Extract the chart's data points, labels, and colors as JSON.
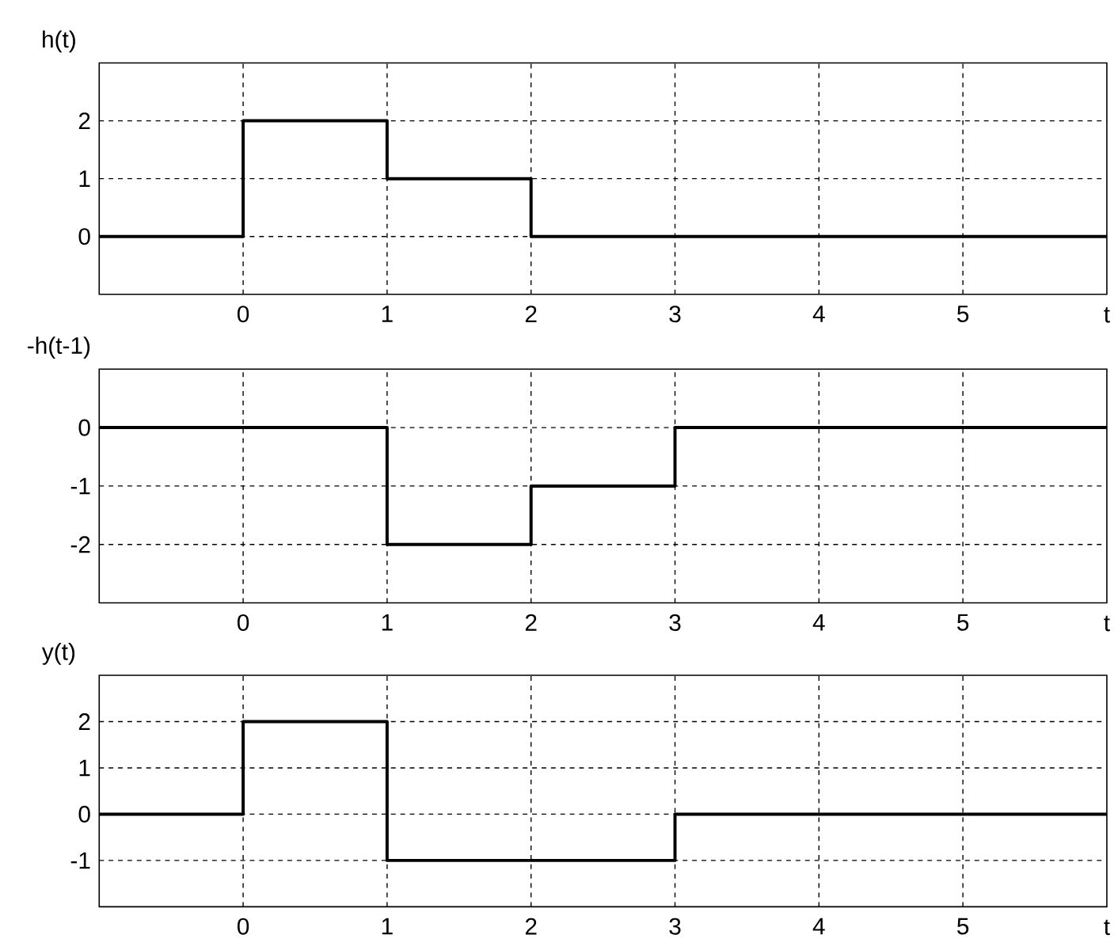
{
  "chart_data": [
    {
      "type": "step",
      "ylabel": "h(t)",
      "x": [
        -1,
        0,
        1,
        2,
        6
      ],
      "values": [
        0,
        2,
        1,
        0,
        0
      ],
      "color": "#000000",
      "xlim": [
        -1,
        6
      ],
      "ylim": [
        -1,
        3
      ],
      "xlabel": "t",
      "xticks": [
        0,
        1,
        2,
        3,
        4,
        5
      ],
      "yticks": [
        0,
        1,
        2
      ],
      "grid": true,
      "line_style": "solid",
      "marker": "none"
    },
    {
      "type": "step",
      "ylabel": "-h(t-1)",
      "x": [
        -1,
        1,
        2,
        3,
        6
      ],
      "values": [
        0,
        -2,
        -1,
        0,
        0
      ],
      "color": "#000000",
      "xlim": [
        -1,
        6
      ],
      "ylim": [
        -3,
        1
      ],
      "xlabel": "t",
      "xticks": [
        0,
        1,
        2,
        3,
        4,
        5
      ],
      "yticks": [
        -2,
        -1,
        0
      ],
      "grid": true,
      "line_style": "solid",
      "marker": "none"
    },
    {
      "type": "step",
      "ylabel": "y(t)",
      "x": [
        -1,
        0,
        1,
        3,
        6
      ],
      "values": [
        0,
        2,
        -1,
        0,
        0
      ],
      "color": "#000000",
      "xlim": [
        -1,
        6
      ],
      "ylim": [
        -2,
        3
      ],
      "xlabel": "t",
      "xticks": [
        0,
        1,
        2,
        3,
        4,
        5
      ],
      "yticks": [
        -1,
        0,
        1,
        2
      ],
      "grid": true,
      "line_style": "solid",
      "marker": "none"
    }
  ]
}
